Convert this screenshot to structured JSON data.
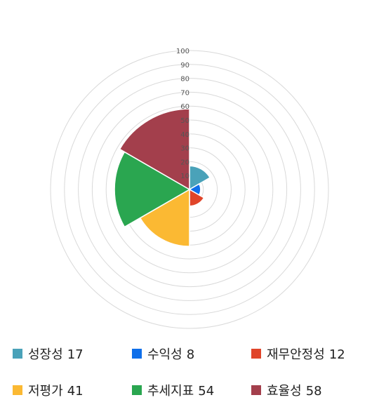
{
  "chart_data": {
    "type": "polar-area",
    "radial_axis": {
      "min": 0,
      "max": 100,
      "ticks": [
        10,
        20,
        30,
        40,
        50,
        60,
        70,
        80,
        90,
        100
      ],
      "grid": true
    },
    "categories": [
      "성장성",
      "수익성",
      "재무안정성",
      "저평가",
      "추세지표",
      "효율성"
    ],
    "values": [
      17,
      8,
      12,
      41,
      54,
      58
    ],
    "colors": [
      "#4aa2b9",
      "#0f6fea",
      "#e0452a",
      "#fbb933",
      "#2aa650",
      "#a33f4c"
    ],
    "legend_position": "bottom"
  }
}
